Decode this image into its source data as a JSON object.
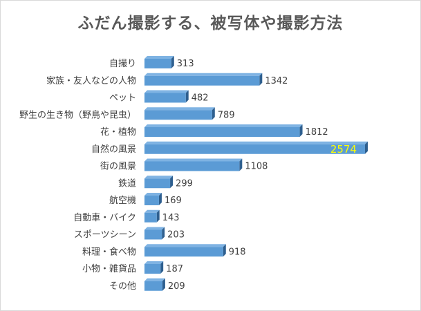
{
  "chart_data": {
    "type": "bar",
    "orientation": "horizontal",
    "title": "ふだん撮影する、被写体や撮影方法",
    "categories": [
      "自撮り",
      "家族・友人などの人物",
      "ペット",
      "野生の生き物（野鳥や昆虫）",
      "花・植物",
      "自然の風景",
      "街の風景",
      "鉄道",
      "航空機",
      "自動車・バイク",
      "スポーツシーン",
      "料理・食べ物",
      "小物・雑貨品",
      "その他"
    ],
    "values": [
      313,
      1342,
      482,
      789,
      1812,
      2574,
      1108,
      299,
      169,
      143,
      203,
      918,
      187,
      209
    ],
    "xlim": [
      0,
      2574
    ],
    "grid": false,
    "legend": "none",
    "bar_style": "3d",
    "colors": {
      "bar_front": "#5b9bd5",
      "bar_top": "#7fb3e3",
      "bar_side": "#2e5f8f",
      "highlight_label": "#ffff00",
      "text": "#404040",
      "title": "#595959"
    },
    "highlight_index": 5
  }
}
